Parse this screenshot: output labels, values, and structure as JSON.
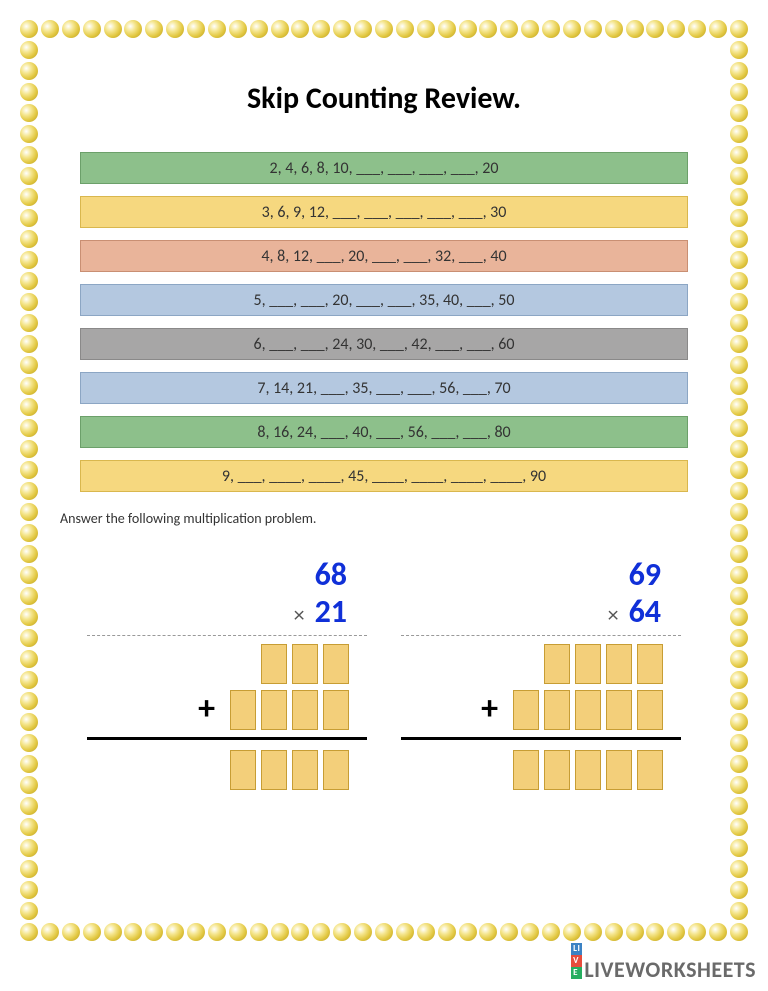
{
  "title": "Skip Counting Review.",
  "instruction": "Answer the following multiplication problem.",
  "sequence_rows": [
    {
      "text": "2, 4, 6, 8, 10, ___, ___, ___, ___, 20",
      "bg": "#8dc08b",
      "border": "#6ca06a"
    },
    {
      "text": "3, 6, 9, 12, ___, ___, ___, ___, ___, 30",
      "bg": "#f6d87f",
      "border": "#d9b74e"
    },
    {
      "text": "4, 8, 12, ___, 20, ___, ___, 32, ___, 40",
      "bg": "#e9b49a",
      "border": "#c98f73"
    },
    {
      "text": "5, ___, ___, 20, ___, ___, 35, 40, ___, 50",
      "bg": "#b4c8e0",
      "border": "#8ca6c4"
    },
    {
      "text": "6, ___, ___, 24, 30, ___, 42, ___, ___, 60",
      "bg": "#a7a6a6",
      "border": "#8a8989"
    },
    {
      "text": "7, 14, 21, ___, 35, ___, ___, 56, ___, 70",
      "bg": "#b4c8e0",
      "border": "#8ca6c4"
    },
    {
      "text": "8, 16, 24, ___, 40, ___, 56, ___, ___, 80",
      "bg": "#8dc08b",
      "border": "#6ca06a"
    },
    {
      "text": "9, ___, ____, ____, 45, ____, ____, ____, ____, 90",
      "bg": "#f6d87f",
      "border": "#d9b74e"
    }
  ],
  "multiplication": [
    {
      "a": "68",
      "b": "21",
      "partial1_boxes": 3,
      "partial2_boxes": 4,
      "result_boxes": 4
    },
    {
      "a": "69",
      "b": "64",
      "partial1_boxes": 4,
      "partial2_boxes": 5,
      "result_boxes": 5
    }
  ],
  "watermark": "LIVEWORKSHEETS",
  "border_dot_color": "#e3c944",
  "border_dots": {
    "horiz_count": 35,
    "vert_count": 44,
    "spacing": 20.6,
    "start": 4
  }
}
